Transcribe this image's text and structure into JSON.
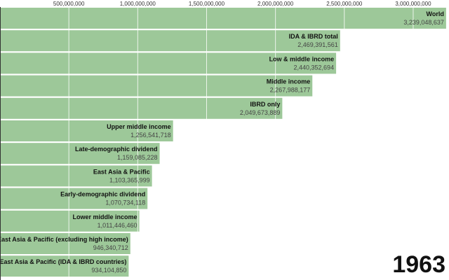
{
  "chart_data": {
    "type": "bar",
    "orientation": "horizontal",
    "bar_color": "#9dc899",
    "xlim": [
      0,
      3260000000
    ],
    "x_ticks": [
      "500,000,000",
      "1,000,000,000",
      "1,500,000,000",
      "2,000,000,000",
      "2,500,000,000",
      "3,000,000,000"
    ],
    "x_tick_values": [
      500000000,
      1000000000,
      1500000000,
      2000000000,
      2500000000,
      3000000000
    ],
    "grid": true,
    "year": "1963",
    "categories": [
      "World",
      "IDA & IBRD total",
      "Low & middle income",
      "Middle income",
      "IBRD only",
      "Upper middle income",
      "Late-demographic dividend",
      "East Asia & Pacific",
      "Early-demographic dividend",
      "Lower middle income",
      "East Asia & Pacific (excluding high income)",
      "East Asia & Pacific (IDA & IBRD countries)"
    ],
    "values": [
      3239048637,
      2469391561,
      2440352694,
      2267988177,
      2049673889,
      1256541718,
      1159085228,
      1103365999,
      1070734118,
      1011446460,
      946340712,
      934104850
    ],
    "value_labels": [
      "3,239,048,637",
      "2,469,391,561",
      "2,440,352,694",
      "2,267,988,177",
      "2,049,673,889",
      "1,256,541,718",
      "1,159,085,228",
      "1,103,365,999",
      "1,070,734,118",
      "1,011,446,460",
      "946,340,712",
      "934,104,850"
    ]
  }
}
